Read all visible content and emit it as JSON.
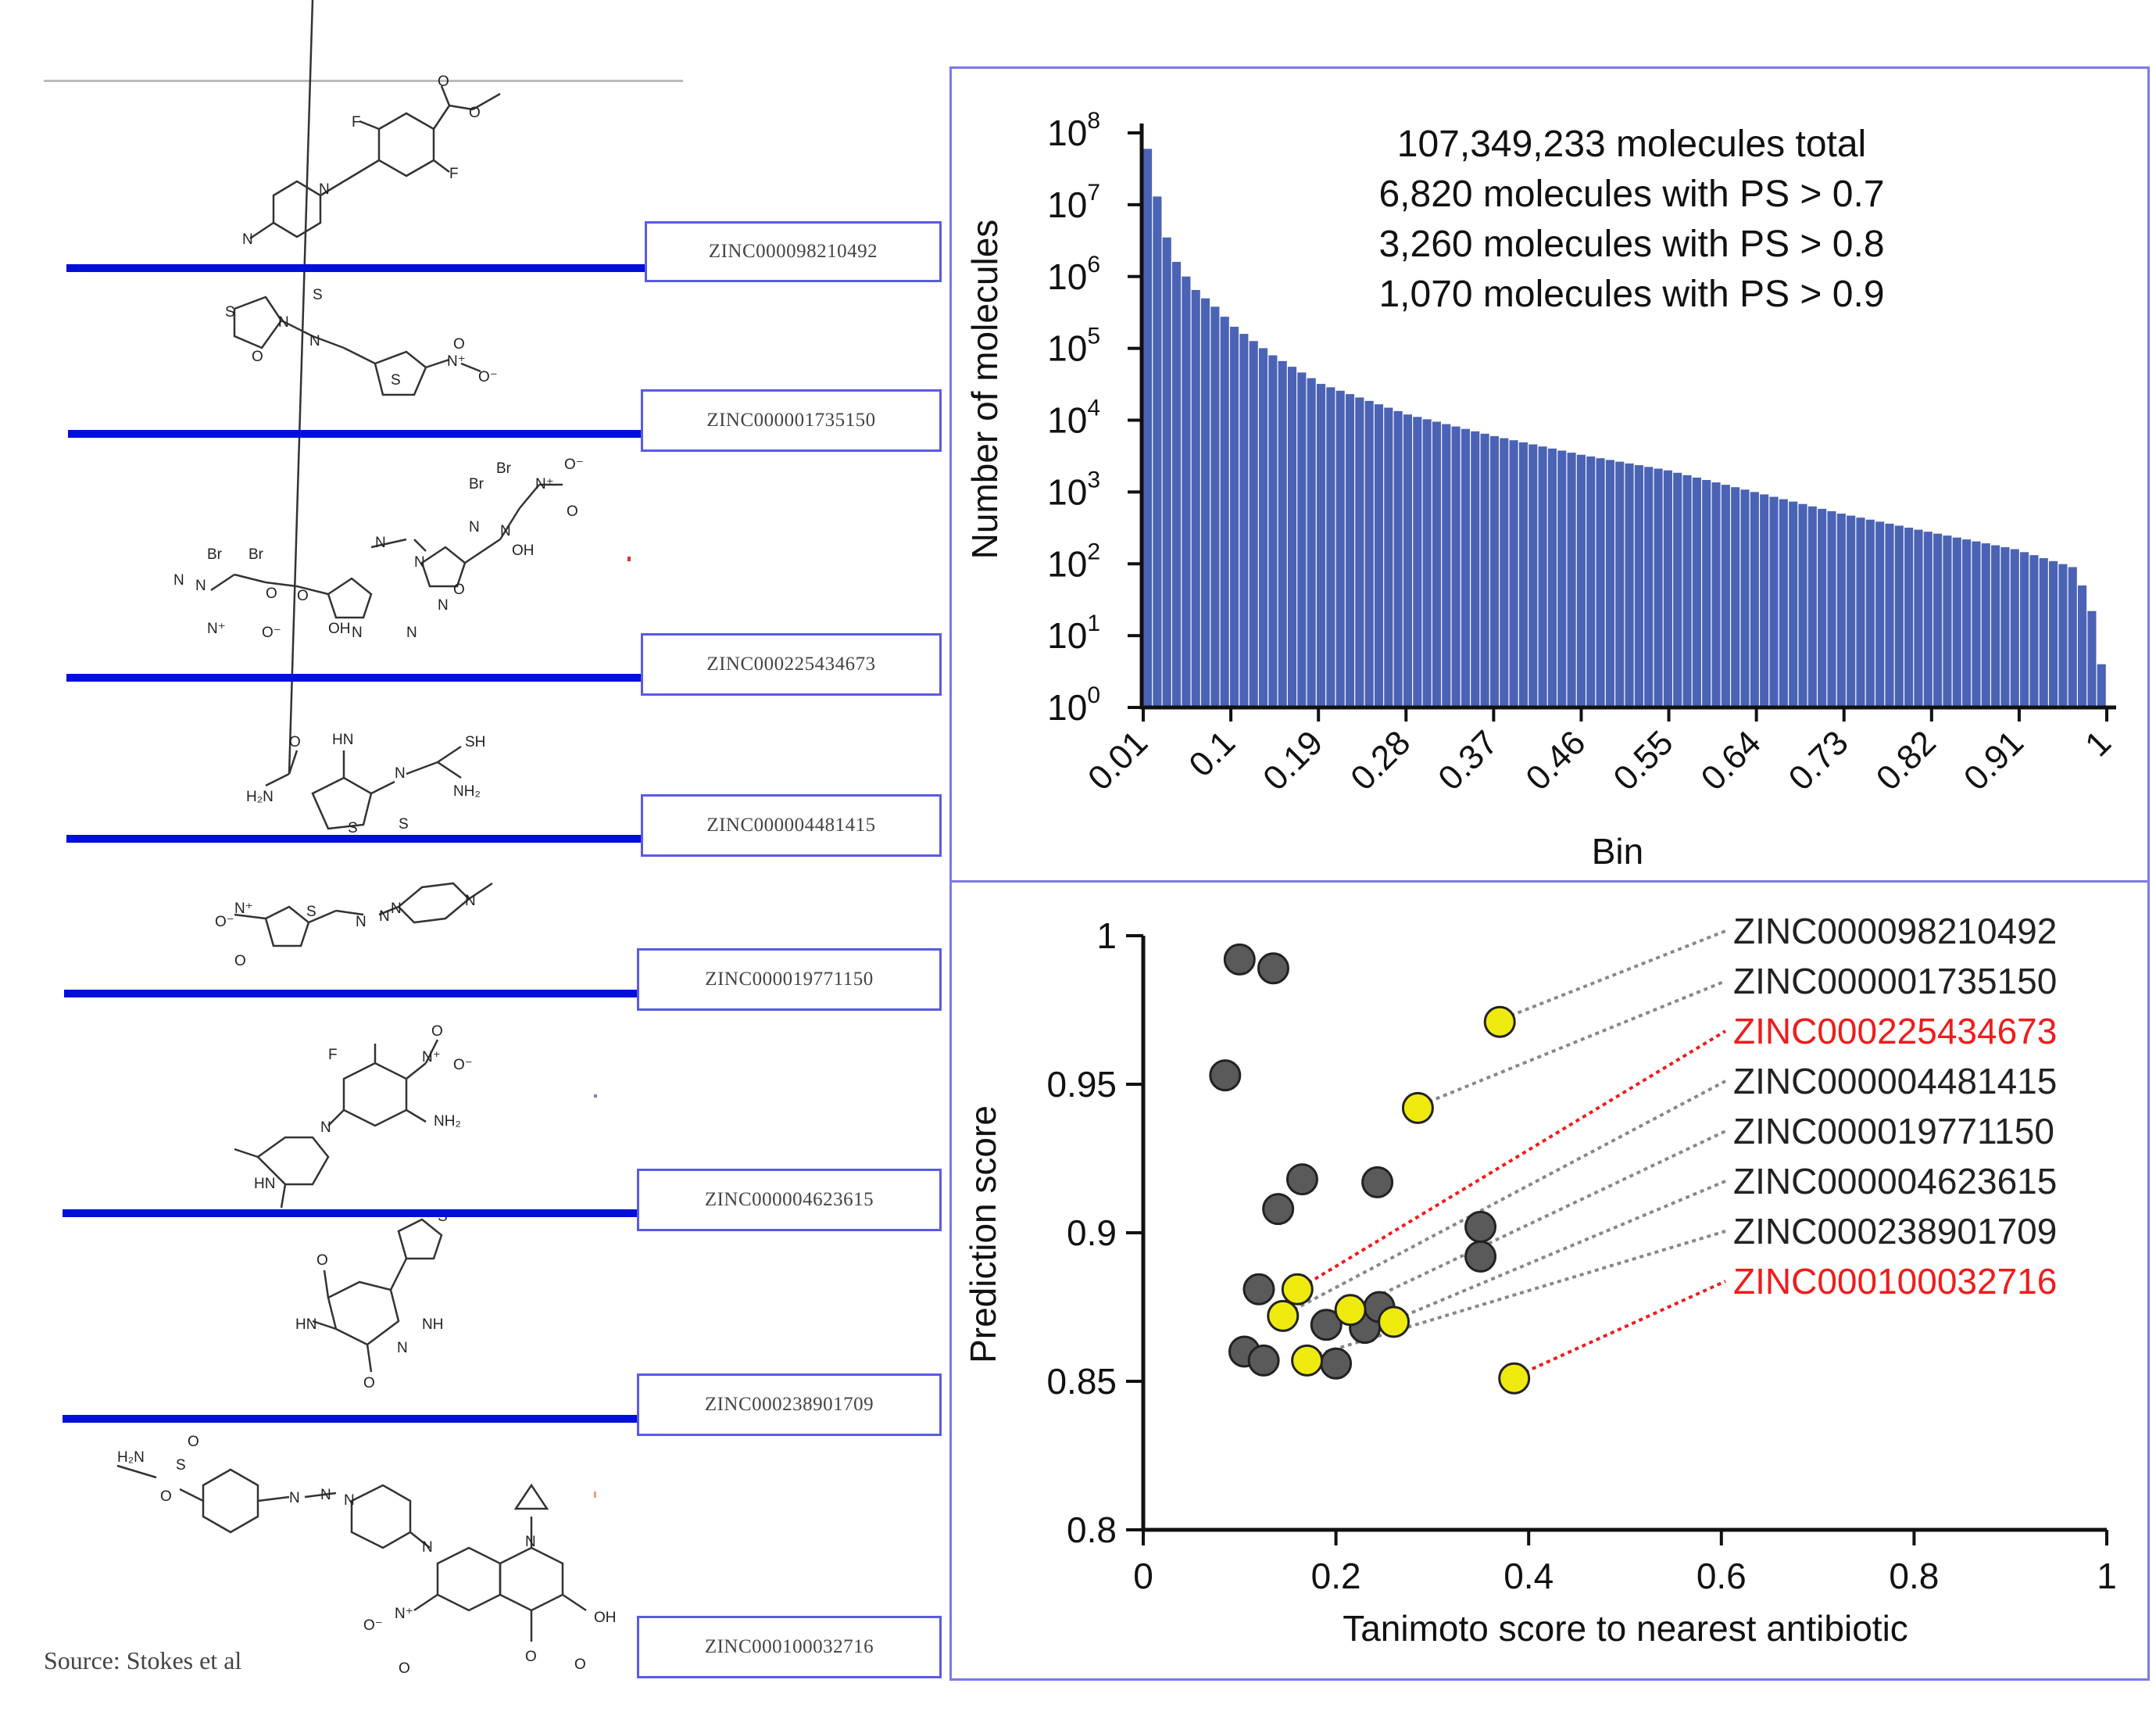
{
  "left_panel": {
    "compounds": [
      "ZINC000098210492",
      "ZINC000001735150",
      "ZINC000225434673",
      "ZINC000004481415",
      "ZINC000019771150",
      "ZINC000004623615",
      "ZINC000238901709",
      "ZINC000100032716"
    ],
    "structure_labels": {
      "m1": [
        "F",
        "F",
        "N",
        "N",
        "O",
        "O"
      ],
      "m2": [
        "S",
        "S",
        "N",
        "N",
        "O",
        "S",
        "N⁺",
        "O⁻",
        "O"
      ],
      "m3": [
        "Br",
        "Br",
        "Br",
        "Br",
        "N⁺",
        "O⁻",
        "O",
        "N",
        "N",
        "OH",
        "N",
        "N",
        "N",
        "O",
        "N",
        "N",
        "N⁺",
        "O⁻",
        "O",
        "OH",
        "N",
        "O",
        "N"
      ],
      "m4": [
        "HN",
        "N",
        "SH",
        "H₂N",
        "O",
        "S",
        "S",
        "NH₂"
      ],
      "m5": [
        "N⁺",
        "O⁻",
        "O",
        "S",
        "N",
        "N",
        "N",
        "N"
      ],
      "m6": [
        "F",
        "N⁺",
        "O⁻",
        "O",
        "N",
        "NH₂",
        "HN"
      ],
      "m7": [
        "S",
        "O",
        "HN",
        "NH",
        "N",
        "O"
      ],
      "m8": [
        "H₂N",
        "S",
        "O",
        "O",
        "N",
        "N",
        "N",
        "N",
        "N",
        "N⁺",
        "O⁻",
        "O",
        "O",
        "OH",
        "O"
      ]
    },
    "source": "Source: Stokes et al"
  },
  "chart_data": [
    {
      "type": "bar",
      "title": "",
      "xlabel": "Bin",
      "ylabel": "Number of molecules",
      "yscale": "log",
      "ylim": [
        1,
        100000000
      ],
      "ytick_base": "10",
      "ytick_exponents": [
        "0",
        "1",
        "2",
        "3",
        "4",
        "5",
        "6",
        "7",
        "8"
      ],
      "xticks": [
        "0.01",
        "0.1",
        "0.19",
        "0.28",
        "0.37",
        "0.46",
        "0.55",
        "0.64",
        "0.73",
        "0.82",
        "0.91",
        "1"
      ],
      "x_range": [
        0.01,
        1
      ],
      "bin_count": 100,
      "bar_color": "#4a63b5",
      "anchors": [
        [
          0.01,
          60000000
        ],
        [
          0.02,
          13000000
        ],
        [
          0.03,
          3500000
        ],
        [
          0.04,
          1600000
        ],
        [
          0.05,
          1000000
        ],
        [
          0.06,
          650000
        ],
        [
          0.08,
          380000
        ],
        [
          0.1,
          200000
        ],
        [
          0.14,
          80000
        ],
        [
          0.19,
          32000
        ],
        [
          0.28,
          12000
        ],
        [
          0.37,
          6000
        ],
        [
          0.46,
          3300
        ],
        [
          0.55,
          2000
        ],
        [
          0.64,
          1000
        ],
        [
          0.73,
          500
        ],
        [
          0.82,
          280
        ],
        [
          0.91,
          160
        ],
        [
          0.97,
          90
        ],
        [
          0.98,
          50
        ],
        [
          0.99,
          22
        ],
        [
          1.0,
          4
        ]
      ],
      "annotations": [
        "107,349,233 molecules total",
        "6,820 molecules with PS > 0.7",
        "3,260 molecules with PS > 0.8",
        "1,070 molecules with PS > 0.9"
      ]
    },
    {
      "type": "scatter",
      "xlabel": "Tanimoto score to nearest antibiotic",
      "ylabel": "Prediction score",
      "xlim": [
        0,
        1
      ],
      "ylim": [
        0.8,
        1
      ],
      "xticks": [
        "0",
        "0.2",
        "0.4",
        "0.6",
        "0.8",
        "1"
      ],
      "yticks": [
        "0.8",
        "0.85",
        "0.9",
        "0.95",
        "1"
      ],
      "series": [
        {
          "name": "other",
          "color": "#5a5a5a",
          "points": [
            [
              0.1,
              0.992
            ],
            [
              0.135,
              0.989
            ],
            [
              0.085,
              0.953
            ],
            [
              0.165,
              0.918
            ],
            [
              0.14,
              0.908
            ],
            [
              0.243,
              0.917
            ],
            [
              0.35,
              0.902
            ],
            [
              0.35,
              0.892
            ],
            [
              0.12,
              0.881
            ],
            [
              0.19,
              0.869
            ],
            [
              0.23,
              0.868
            ],
            [
              0.245,
              0.875
            ],
            [
              0.105,
              0.86
            ],
            [
              0.125,
              0.857
            ],
            [
              0.2,
              0.856
            ]
          ]
        },
        {
          "name": "highlighted",
          "color": "#eeea0e",
          "points": [
            [
              0.37,
              0.971,
              "ZINC000098210492"
            ],
            [
              0.285,
              0.942,
              "ZINC000001735150"
            ],
            [
              0.16,
              0.881,
              "ZINC000225434673"
            ],
            [
              0.145,
              0.872,
              "ZINC000004481415"
            ],
            [
              0.215,
              0.874,
              "ZINC000019771150"
            ],
            [
              0.26,
              0.87,
              "ZINC000004623615"
            ],
            [
              0.17,
              0.857,
              "ZINC000238901709"
            ],
            [
              0.385,
              0.851,
              "ZINC000100032716"
            ]
          ]
        }
      ],
      "labels": [
        {
          "text": "ZINC000098210492",
          "color": "#222222"
        },
        {
          "text": "ZINC000001735150",
          "color": "#222222"
        },
        {
          "text": "ZINC000225434673",
          "color": "#ee1c1c"
        },
        {
          "text": "ZINC000004481415",
          "color": "#222222"
        },
        {
          "text": "ZINC000019771150",
          "color": "#222222"
        },
        {
          "text": "ZINC000004623615",
          "color": "#222222"
        },
        {
          "text": "ZINC000238901709",
          "color": "#222222"
        },
        {
          "text": "ZINC000100032716",
          "color": "#ee1c1c"
        }
      ]
    }
  ]
}
